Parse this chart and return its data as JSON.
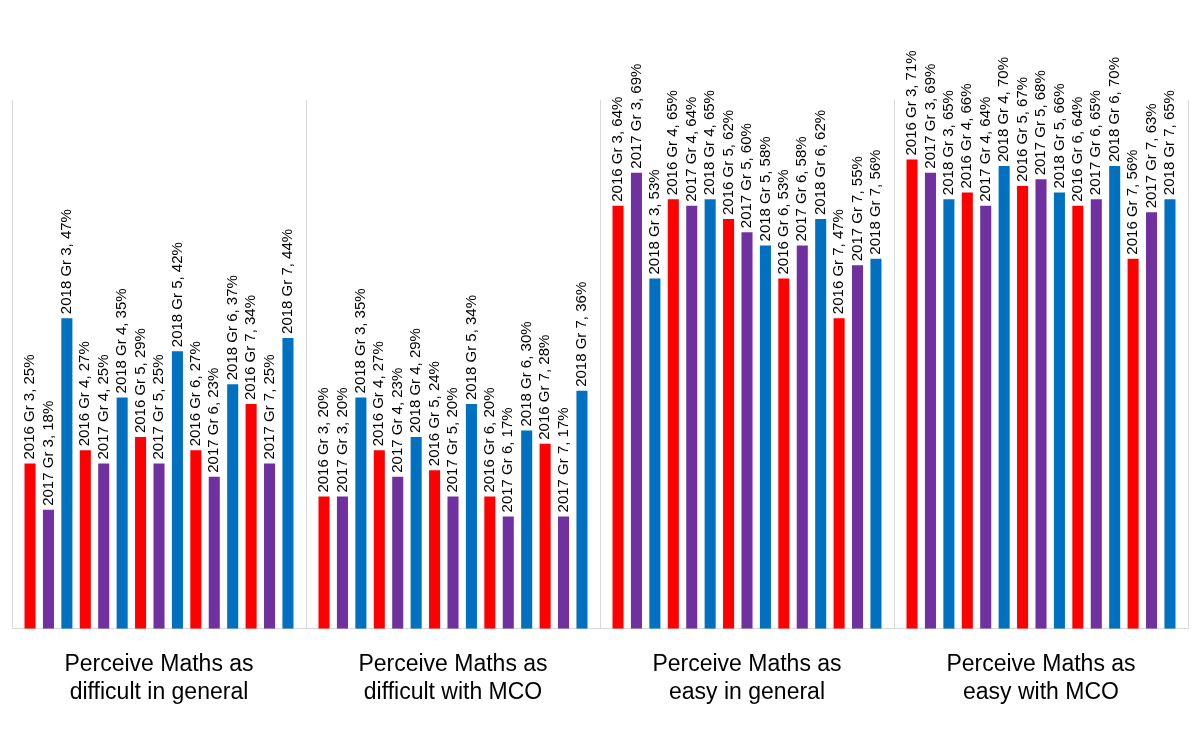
{
  "chart_data": {
    "type": "bar",
    "categories": [
      "Perceive Maths as difficult in general",
      "Perceive Maths as difficult with MCO",
      "Perceive Maths as easy in general",
      "Perceive Maths as easy with MCO"
    ],
    "series": [
      {
        "color": "#ff0000",
        "values": [
          25,
          20,
          64,
          71
        ],
        "value_labels": [
          "2016 Gr 3, 25%",
          "2016 Gr 3, 20%",
          "2016 Gr 3, 64%",
          "2016 Gr 3, 71%"
        ]
      },
      {
        "color": "#7030a0",
        "values": [
          18,
          20,
          69,
          69
        ],
        "value_labels": [
          "2017 Gr 3, 18%",
          "2017 Gr 3, 20%",
          "2017 Gr 3, 69%",
          "2017 Gr 3, 69%"
        ]
      },
      {
        "color": "#0070c0",
        "values": [
          47,
          35,
          53,
          65
        ],
        "value_labels": [
          "2018 Gr 3, 47%",
          "2018 Gr 3, 35%",
          "2018 Gr 3, 53%",
          "2018 Gr 3, 65%"
        ]
      },
      {
        "color": "#ff0000",
        "values": [
          27,
          27,
          65,
          66
        ],
        "value_labels": [
          "2016 Gr 4, 27%",
          "2016 Gr 4, 27%",
          "2016 Gr 4, 65%",
          "2016 Gr 4, 66%"
        ]
      },
      {
        "color": "#7030a0",
        "values": [
          25,
          23,
          64,
          64
        ],
        "value_labels": [
          "2017 Gr 4, 25%",
          "2017 Gr 4, 23%",
          "2017 Gr 4, 64%",
          "2017 Gr 4, 64%"
        ]
      },
      {
        "color": "#0070c0",
        "values": [
          35,
          29,
          65,
          70
        ],
        "value_labels": [
          "2018 Gr 4, 35%",
          "2018 Gr 4, 29%",
          "2018 Gr 4, 65%",
          "2018 Gr 4, 70%"
        ]
      },
      {
        "color": "#ff0000",
        "values": [
          29,
          24,
          62,
          67
        ],
        "value_labels": [
          "2016 Gr 5, 29%",
          "2016 Gr 5, 24%",
          "2016 Gr 5, 62%",
          "2016 Gr 5, 67%"
        ]
      },
      {
        "color": "#7030a0",
        "values": [
          25,
          20,
          60,
          68
        ],
        "value_labels": [
          "2017 Gr 5, 25%",
          "2017 Gr 5, 20%",
          "2017 Gr 5, 60%",
          "2017 Gr 5, 68%"
        ]
      },
      {
        "color": "#0070c0",
        "values": [
          42,
          34,
          58,
          66
        ],
        "value_labels": [
          "2018 Gr 5, 42%",
          "2018 Gr 5, 34%",
          "2018 Gr 5, 58%",
          "2018 Gr 5, 66%"
        ]
      },
      {
        "color": "#ff0000",
        "values": [
          27,
          20,
          53,
          64
        ],
        "value_labels": [
          "2016 Gr 6, 27%",
          "2016 Gr 6, 20%",
          "2016 Gr 6, 53%",
          "2016 Gr 6, 64%"
        ]
      },
      {
        "color": "#7030a0",
        "values": [
          23,
          17,
          58,
          65
        ],
        "value_labels": [
          "2017 Gr 6, 23%",
          "2017 Gr 6, 17%",
          "2017 Gr 6, 58%",
          "2017 Gr 6, 65%"
        ]
      },
      {
        "color": "#0070c0",
        "values": [
          37,
          30,
          62,
          70
        ],
        "value_labels": [
          "2018 Gr 6, 37%",
          "2018 Gr 6, 30%",
          "2018 Gr 6, 62%",
          "2018 Gr 6, 70%"
        ]
      },
      {
        "color": "#ff0000",
        "values": [
          34,
          28,
          47,
          56
        ],
        "value_labels": [
          "2016 Gr 7, 34%",
          "2016 Gr 7, 28%",
          "2016 Gr 7, 47%",
          "2016 Gr 7, 56%"
        ]
      },
      {
        "color": "#7030a0",
        "values": [
          25,
          17,
          55,
          63
        ],
        "value_labels": [
          "2017 Gr 7, 25%",
          "2017 Gr 7, 17%",
          "2017 Gr 7, 55%",
          "2017 Gr 7, 63%"
        ]
      },
      {
        "color": "#0070c0",
        "values": [
          44,
          36,
          56,
          65
        ],
        "value_labels": [
          "2018 Gr 7, 44%",
          "2018 Gr 7, 36%",
          "2018 Gr 7, 56%",
          "2018 Gr 7, 65%"
        ]
      }
    ],
    "grid": "x",
    "tick_labels": "x"
  }
}
